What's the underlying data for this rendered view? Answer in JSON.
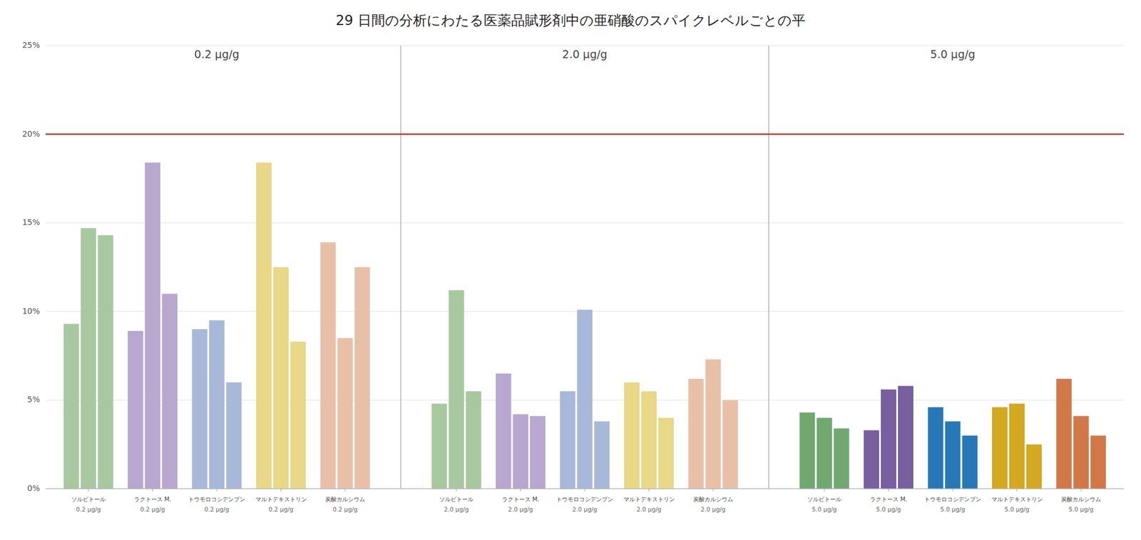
{
  "chart_data": {
    "type": "bar",
    "title": "29 日間の分析にわたる医薬品賦形剤中の亜硝酸のスパイクレベルごとの平",
    "ylim": [
      0,
      0.25
    ],
    "yticks": [
      {
        "value": 0,
        "label": "0%"
      },
      {
        "value": 0.05,
        "label": "5%"
      },
      {
        "value": 0.1,
        "label": "10%"
      },
      {
        "value": 0.15,
        "label": "15%"
      },
      {
        "value": 0.2,
        "label": "20%"
      },
      {
        "value": 0.25,
        "label": "25%"
      }
    ],
    "grid": true,
    "reference_line": {
      "value": 0.2,
      "color": "#cc0000"
    },
    "groups": [
      {
        "name": "0.2 μg/g",
        "categories": [
          {
            "name": "ソルビトール",
            "color": "#a8c8a0",
            "values": [
              0.093,
              0.147,
              0.143
            ]
          },
          {
            "name": "ラクトース M.",
            "color": "#b8a8d0",
            "values": [
              0.089,
              0.184,
              0.11
            ]
          },
          {
            "name": "トウモロコシデンプン",
            "color": "#a8b8d8",
            "values": [
              0.09,
              0.095,
              0.06
            ]
          },
          {
            "name": "マルトデキストリン",
            "color": "#e8d888",
            "values": [
              0.184,
              0.125,
              0.083
            ]
          },
          {
            "name": "炭酸カルシウム",
            "color": "#e8c0a8",
            "values": [
              0.139,
              0.085,
              0.125
            ]
          }
        ]
      },
      {
        "name": "2.0 μg/g",
        "categories": [
          {
            "name": "ソルビトール",
            "color": "#a8c8a0",
            "values": [
              0.048,
              0.112,
              0.055
            ]
          },
          {
            "name": "ラクトース M.",
            "color": "#b8a8d0",
            "values": [
              0.065,
              0.042,
              0.041
            ]
          },
          {
            "name": "トウモロコシデンプン",
            "color": "#a8b8d8",
            "values": [
              0.055,
              0.101,
              0.038
            ]
          },
          {
            "name": "マルトデキストリン",
            "color": "#e8d888",
            "values": [
              0.06,
              0.055,
              0.04
            ]
          },
          {
            "name": "炭酸カルシウム",
            "color": "#e8c0a8",
            "values": [
              0.062,
              0.073,
              0.05
            ]
          }
        ]
      },
      {
        "name": "5.0 μg/g",
        "categories": [
          {
            "name": "ソルビトール",
            "color": "#70a870",
            "values": [
              0.043,
              0.04,
              0.034
            ]
          },
          {
            "name": "ラクトース M.",
            "color": "#7860a0",
            "values": [
              0.033,
              0.056,
              0.058
            ]
          },
          {
            "name": "トウモロコシデンプン",
            "color": "#2878b8",
            "values": [
              0.046,
              0.038,
              0.03
            ]
          },
          {
            "name": "マルトデキストリン",
            "color": "#d4a820",
            "values": [
              0.046,
              0.048,
              0.025
            ]
          },
          {
            "name": "炭酸カルシウム",
            "color": "#d07848",
            "values": [
              0.062,
              0.041,
              0.03
            ]
          }
        ]
      }
    ]
  }
}
